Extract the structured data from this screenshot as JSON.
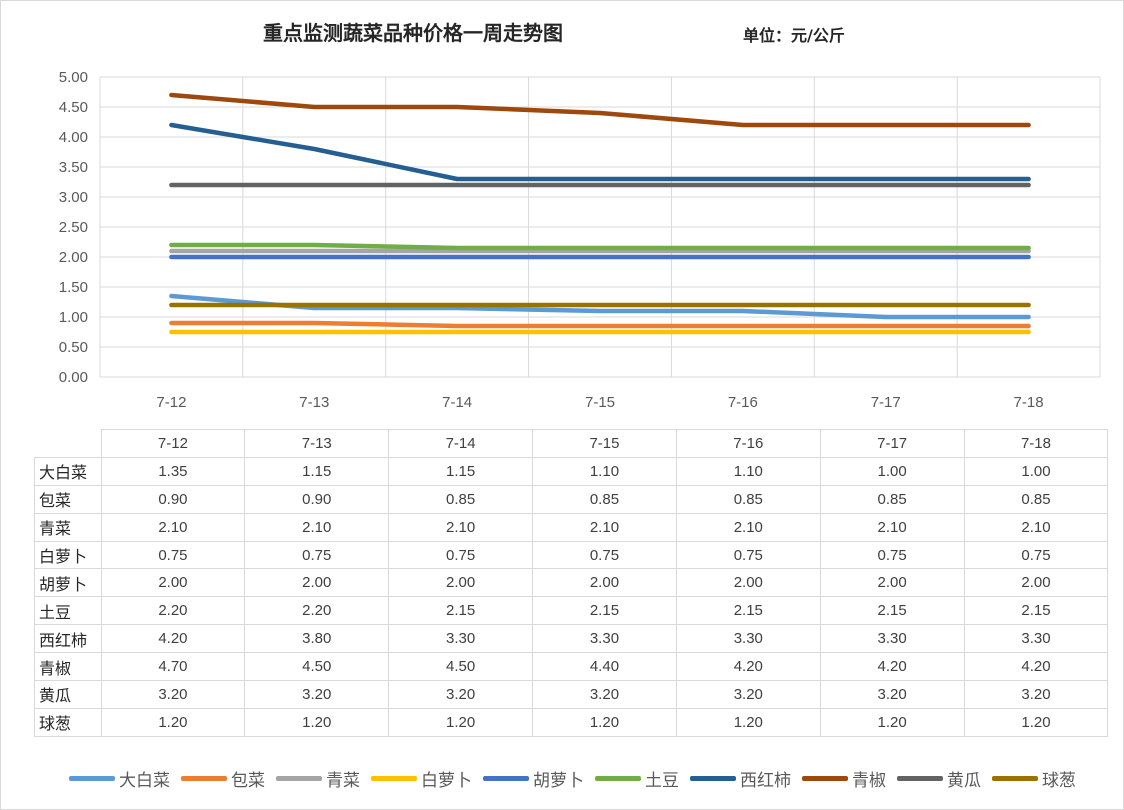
{
  "chart_data": {
    "type": "line",
    "title": "重点监测蔬菜品种价格一周走势图",
    "unit": "单位：元/公斤",
    "categories": [
      "7-12",
      "7-13",
      "7-14",
      "7-15",
      "7-16",
      "7-17",
      "7-18"
    ],
    "ylim": [
      0,
      5
    ],
    "yticks": [
      "0.00",
      "0.50",
      "1.00",
      "1.50",
      "2.00",
      "2.50",
      "3.00",
      "3.50",
      "4.00",
      "4.50",
      "5.00"
    ],
    "grid": true,
    "legend_position": "bottom",
    "series": [
      {
        "name": "大白菜",
        "color": "#5B9BD5",
        "values": [
          1.35,
          1.15,
          1.15,
          1.1,
          1.1,
          1.0,
          1.0
        ],
        "labels": [
          "1.35",
          "1.15",
          "1.15",
          "1.10",
          "1.10",
          "1.00",
          "1.00"
        ]
      },
      {
        "name": "包菜",
        "color": "#ED7D31",
        "values": [
          0.9,
          0.9,
          0.85,
          0.85,
          0.85,
          0.85,
          0.85
        ],
        "labels": [
          "0.90",
          "0.90",
          "0.85",
          "0.85",
          "0.85",
          "0.85",
          "0.85"
        ]
      },
      {
        "name": "青菜",
        "color": "#A5A5A5",
        "values": [
          2.1,
          2.1,
          2.1,
          2.1,
          2.1,
          2.1,
          2.1
        ],
        "labels": [
          "2.10",
          "2.10",
          "2.10",
          "2.10",
          "2.10",
          "2.10",
          "2.10"
        ]
      },
      {
        "name": "白萝卜",
        "color": "#FFC000",
        "values": [
          0.75,
          0.75,
          0.75,
          0.75,
          0.75,
          0.75,
          0.75
        ],
        "labels": [
          "0.75",
          "0.75",
          "0.75",
          "0.75",
          "0.75",
          "0.75",
          "0.75"
        ]
      },
      {
        "name": "胡萝卜",
        "color": "#4472C4",
        "values": [
          2.0,
          2.0,
          2.0,
          2.0,
          2.0,
          2.0,
          2.0
        ],
        "labels": [
          "2.00",
          "2.00",
          "2.00",
          "2.00",
          "2.00",
          "2.00",
          "2.00"
        ]
      },
      {
        "name": "土豆",
        "color": "#70AD47",
        "values": [
          2.2,
          2.2,
          2.15,
          2.15,
          2.15,
          2.15,
          2.15
        ],
        "labels": [
          "2.20",
          "2.20",
          "2.15",
          "2.15",
          "2.15",
          "2.15",
          "2.15"
        ]
      },
      {
        "name": "西红柿",
        "color": "#255E91",
        "values": [
          4.2,
          3.8,
          3.3,
          3.3,
          3.3,
          3.3,
          3.3
        ],
        "labels": [
          "4.20",
          "3.80",
          "3.30",
          "3.30",
          "3.30",
          "3.30",
          "3.30"
        ]
      },
      {
        "name": "青椒",
        "color": "#9E480E",
        "values": [
          4.7,
          4.5,
          4.5,
          4.4,
          4.2,
          4.2,
          4.2
        ],
        "labels": [
          "4.70",
          "4.50",
          "4.50",
          "4.40",
          "4.20",
          "4.20",
          "4.20"
        ]
      },
      {
        "name": "黄瓜",
        "color": "#636363",
        "values": [
          3.2,
          3.2,
          3.2,
          3.2,
          3.2,
          3.2,
          3.2
        ],
        "labels": [
          "3.20",
          "3.20",
          "3.20",
          "3.20",
          "3.20",
          "3.20",
          "3.20"
        ]
      },
      {
        "name": "球葱",
        "color": "#997300",
        "values": [
          1.2,
          1.2,
          1.2,
          1.2,
          1.2,
          1.2,
          1.2
        ],
        "labels": [
          "1.20",
          "1.20",
          "1.20",
          "1.20",
          "1.20",
          "1.20",
          "1.20"
        ]
      }
    ]
  }
}
